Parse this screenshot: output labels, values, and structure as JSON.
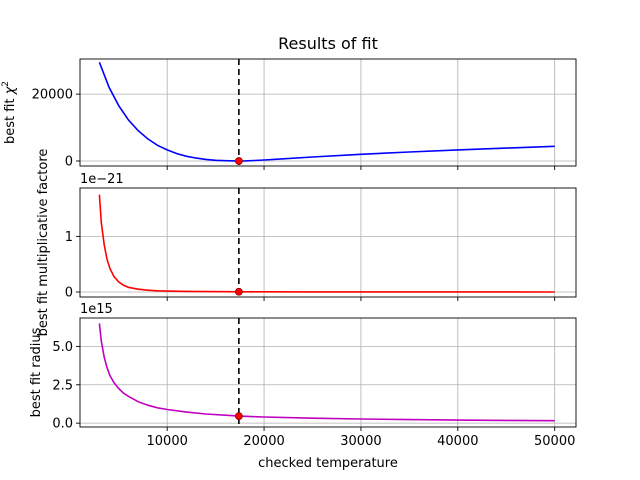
{
  "chart_data": {
    "type": "line",
    "title": "Results of fit",
    "xlabel": "checked temperature",
    "xlim": [
      1000,
      52200
    ],
    "xticks": [
      10000,
      20000,
      30000,
      40000,
      50000
    ],
    "xtick_labels": [
      "10000",
      "20000",
      "30000",
      "40000",
      "50000"
    ],
    "vline_x": 17400,
    "grid": true,
    "panels": [
      {
        "name": "chi2",
        "ylabel_main": "best fit ",
        "ylabel_sym": "χ",
        "ylabel_sup": "2",
        "ylim": [
          -1500,
          30500
        ],
        "yticks": [
          0,
          20000
        ],
        "ytick_labels": [
          "0",
          "20000"
        ],
        "offset_label": "",
        "color": "#0000ff",
        "series": {
          "x": [
            3000,
            4000,
            5000,
            6000,
            7000,
            8000,
            9000,
            10000,
            11000,
            12000,
            13000,
            14000,
            15000,
            16000,
            17000,
            17400,
            18000,
            19000,
            20000,
            22000,
            25000,
            30000,
            35000,
            40000,
            45000,
            50000
          ],
          "y": [
            29500,
            22000,
            16500,
            12300,
            9100,
            6600,
            4700,
            3300,
            2200,
            1400,
            850,
            460,
            210,
            80,
            20,
            0,
            30,
            150,
            300,
            650,
            1200,
            2000,
            2700,
            3300,
            3850,
            4400
          ]
        },
        "best_point": {
          "x": 17400,
          "y": 0
        }
      },
      {
        "name": "multiplicative",
        "ylabel_main": "best fit multiplicative factore",
        "ylim": [
          -0.09,
          1.87
        ],
        "yticks": [
          0,
          1
        ],
        "ytick_labels": [
          "0",
          "1"
        ],
        "offset_label": "1e−21",
        "color": "#ff0000",
        "series": {
          "x": [
            3000,
            3200,
            3500,
            3800,
            4100,
            4500,
            5000,
            5500,
            6000,
            7000,
            8000,
            9000,
            10000,
            12000,
            14000,
            16000,
            17400,
            20000,
            25000,
            30000,
            40000,
            50000
          ],
          "y": [
            1.75,
            1.25,
            0.85,
            0.58,
            0.42,
            0.28,
            0.18,
            0.12,
            0.085,
            0.05,
            0.032,
            0.022,
            0.016,
            0.01,
            0.007,
            0.005,
            0.004,
            0.003,
            0.002,
            0.0015,
            0.001,
            0.0008
          ]
        },
        "best_point": {
          "x": 17400,
          "y": 0.004
        }
      },
      {
        "name": "radius",
        "ylabel_main": "best fit radius",
        "ylim": [
          -0.25,
          6.85
        ],
        "yticks": [
          0,
          2.5,
          5
        ],
        "ytick_labels": [
          "0.0",
          "2.5",
          "5.0"
        ],
        "offset_label": "1e15",
        "color": "#bf00bf",
        "series": {
          "x": [
            3000,
            3200,
            3500,
            3800,
            4100,
            4500,
            5000,
            5500,
            6000,
            7000,
            8000,
            9000,
            10000,
            12000,
            14000,
            16000,
            17400,
            20000,
            25000,
            30000,
            35000,
            40000,
            45000,
            50000
          ],
          "y": [
            6.5,
            5.35,
            4.3,
            3.6,
            3.1,
            2.65,
            2.25,
            1.95,
            1.75,
            1.4,
            1.17,
            1.0,
            0.89,
            0.72,
            0.6,
            0.52,
            0.46,
            0.4,
            0.32,
            0.27,
            0.23,
            0.2,
            0.18,
            0.16
          ]
        },
        "best_point": {
          "x": 17400,
          "y": 0.46
        }
      }
    ]
  }
}
